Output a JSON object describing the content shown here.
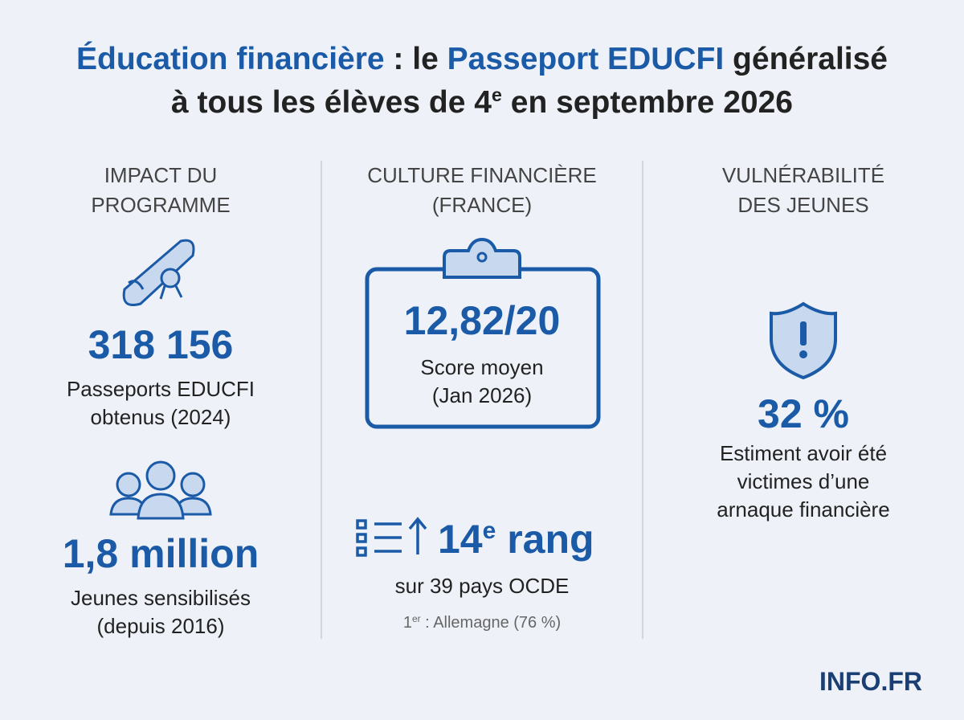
{
  "header": {
    "title_parts": [
      "Éducation financière",
      " : le ",
      "Passeport EDUCFI",
      " généralisé",
      "à tous les élèves de 4",
      "e",
      " en septembre 2026"
    ]
  },
  "columns": [
    {
      "heading": [
        "IMPACT DU",
        "PROGRAMME"
      ],
      "stats": [
        {
          "value": "318 156",
          "label": [
            "Passeports EDUCFI",
            "obtenus (2024)"
          ]
        },
        {
          "value": "1,8 million",
          "label": [
            "Jeunes sensibilisés",
            "(depuis 2016)"
          ]
        }
      ]
    },
    {
      "heading": [
        "CULTURE FINANCIÈRE",
        "(FRANCE)"
      ],
      "stats": [
        {
          "value": "12,82/20",
          "label": [
            "Score moyen",
            "(Jan 2026)"
          ]
        },
        {
          "value_parts": [
            "14",
            "e",
            " rang"
          ],
          "label": [
            "sur 39 pays OCDE"
          ],
          "note_parts": [
            "1",
            "er",
            " : Allemagne (76 %)"
          ]
        }
      ]
    },
    {
      "heading": [
        "VULNÉRABILITÉ",
        "DES JEUNES"
      ],
      "stats": [
        {
          "value": "32 %",
          "label": [
            "Estiment avoir été",
            "victimes d’une",
            "arnaque financière"
          ]
        }
      ]
    }
  ],
  "footer": {
    "brand": "INFO.FR"
  }
}
